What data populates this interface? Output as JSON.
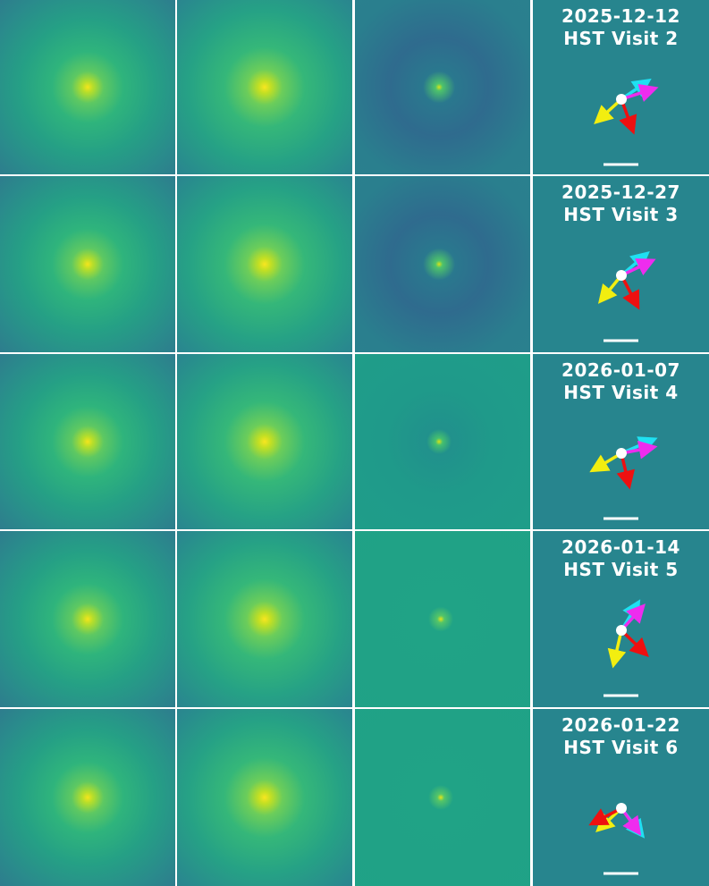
{
  "panels": [
    {
      "date": "2025-12-12",
      "visit": "HST Visit 2"
    },
    {
      "date": "2025-12-27",
      "visit": "HST Visit 3"
    },
    {
      "date": "2026-01-07",
      "visit": "HST Visit 4"
    },
    {
      "date": "2026-01-14",
      "visit": "HST Visit 5"
    },
    {
      "date": "2026-01-22",
      "visit": "HST Visit 6"
    }
  ]
}
